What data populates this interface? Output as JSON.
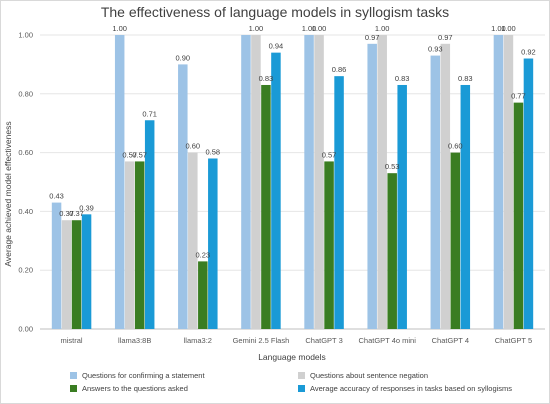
{
  "chart_data": {
    "type": "bar",
    "title": "The effectiveness of language models in syllogism tasks",
    "xlabel": "Language models",
    "ylabel": "Average achieved model effectiveness",
    "ylim": [
      0,
      1
    ],
    "yticks": [
      "0.00",
      "0.20",
      "0.40",
      "0.60",
      "0.80",
      "1.00"
    ],
    "grid": true,
    "legend_position": "bottom",
    "categories": [
      "mistral",
      "llama3:8B",
      "llama3:2",
      "Gemini 2.5 Flash",
      "ChatGPT 3",
      "ChatGPT 4o mini",
      "ChatGPT 4",
      "ChatGPT 5"
    ],
    "series": [
      {
        "name": "Questions for confirming a statement",
        "color": "#9dc3e6",
        "values": [
          0.43,
          1.0,
          0.9,
          1.0,
          1.0,
          0.97,
          0.93,
          1.0
        ],
        "labels": [
          "0.43",
          "1.00",
          "0.90",
          "",
          "1.00",
          "0.97",
          "0.93",
          "1.00"
        ]
      },
      {
        "name": "Questions about sentence negation",
        "color": "#d0d0d0",
        "values": [
          0.37,
          0.57,
          0.6,
          1.0,
          1.0,
          1.0,
          0.97,
          1.0
        ],
        "labels": [
          "0.37",
          "0.57",
          "0.60",
          "1.00",
          "1.00",
          "1.00",
          "0.97",
          "1.00"
        ]
      },
      {
        "name": "Answers to the questions asked",
        "color": "#3a7d22",
        "values": [
          0.37,
          0.57,
          0.23,
          0.83,
          0.57,
          0.53,
          0.6,
          0.77
        ],
        "labels": [
          "0.37",
          "0.57",
          "0.23",
          "0.83",
          "0.57",
          "0.53",
          "0.60",
          "0.77"
        ]
      },
      {
        "name": "Average accuracy of responses in tasks based on syllogisms",
        "color": "#1a9ad6",
        "values": [
          0.39,
          0.71,
          0.58,
          0.94,
          0.86,
          0.83,
          0.83,
          0.92
        ],
        "labels": [
          "0.39",
          "0.71",
          "0.58",
          "0.94",
          "0.86",
          "0.83",
          "0.83",
          "0.92"
        ]
      }
    ]
  }
}
